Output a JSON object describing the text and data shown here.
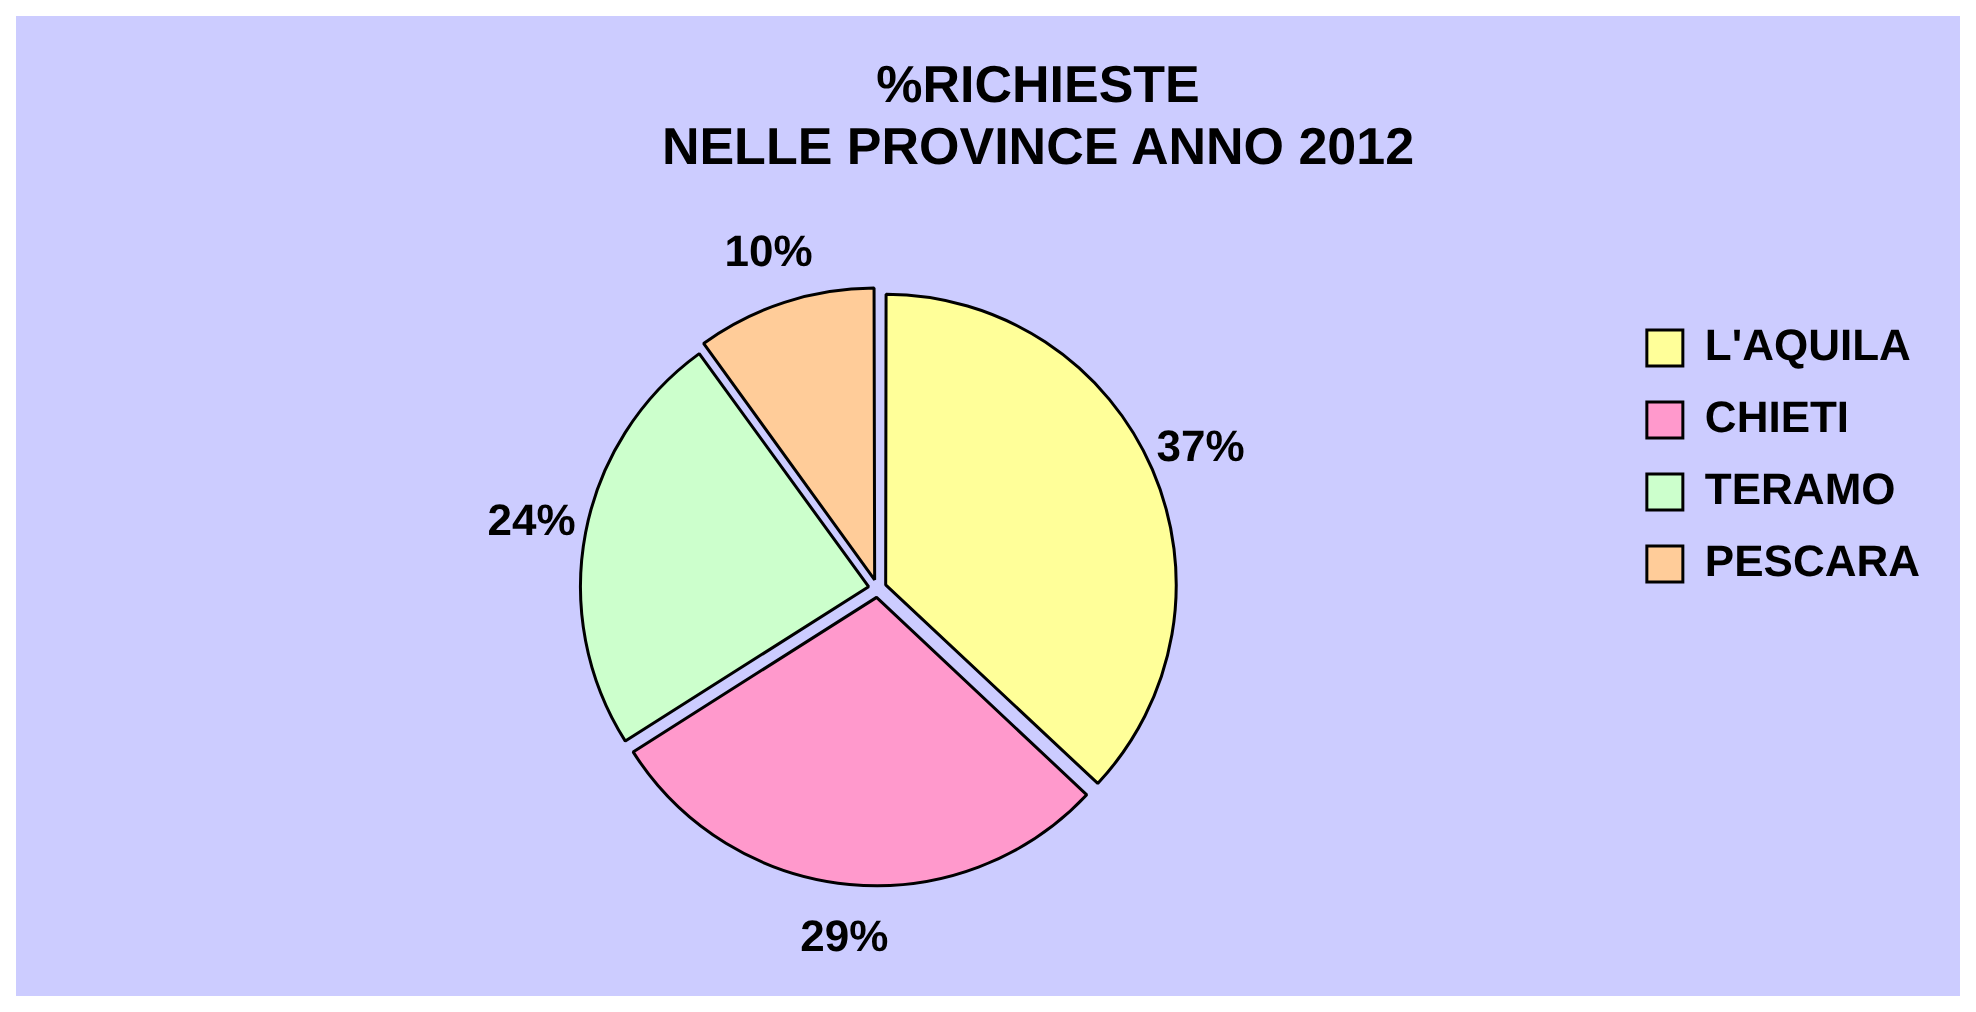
{
  "chart_data": {
    "type": "pie",
    "title": "%RICHIESTE\nNELLE PROVINCE ANNO 2012",
    "categories": [
      "L'AQUILA",
      "CHIETI",
      "TERAMO",
      "PESCARA"
    ],
    "values": [
      37,
      29,
      24,
      10
    ],
    "colors": [
      "#ffff99",
      "#ff99cc",
      "#ccffcc",
      "#ffcc99"
    ],
    "value_labels": [
      "37%",
      "29%",
      "24%",
      "10%"
    ],
    "legend": "right"
  }
}
